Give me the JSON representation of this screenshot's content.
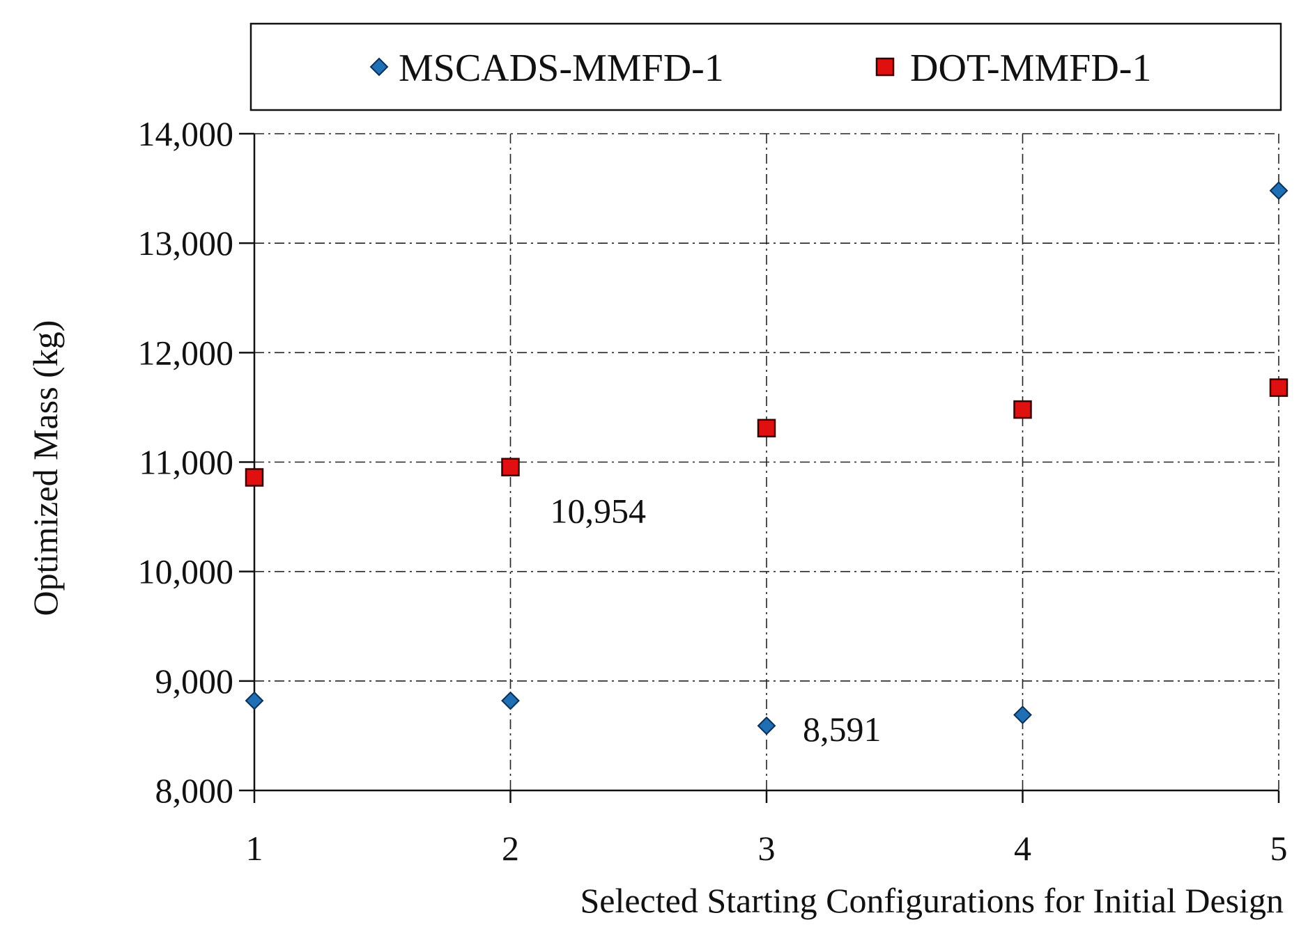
{
  "chart_data": {
    "type": "scatter",
    "title": "",
    "xlabel": "Selected Starting Configurations for Initial Design",
    "ylabel": "Optimized Mass (kg)",
    "xlim": [
      1,
      5
    ],
    "ylim": [
      8000,
      14000
    ],
    "x_ticks": [
      1,
      2,
      3,
      4,
      5
    ],
    "x_tick_labels": [
      "1",
      "2",
      "3",
      "4",
      "5"
    ],
    "y_ticks": [
      8000,
      9000,
      10000,
      11000,
      12000,
      13000,
      14000
    ],
    "y_tick_labels": [
      "8,000",
      "9,000",
      "10,000",
      "11,000",
      "12,000",
      "13,000",
      "14,000"
    ],
    "grid": true,
    "legend_position": "top",
    "series": [
      {
        "name": "MSCADS-MMFD-1",
        "marker": "diamond",
        "color": "#1f6fb5",
        "x": [
          1,
          2,
          3,
          4,
          5
        ],
        "y": [
          8820,
          8820,
          8591,
          8690,
          13480
        ]
      },
      {
        "name": "DOT-MMFD-1",
        "marker": "square",
        "color": "#e01010",
        "x": [
          1,
          2,
          3,
          4,
          5
        ],
        "y": [
          10860,
          10954,
          11310,
          11480,
          11680
        ]
      }
    ],
    "annotations": [
      {
        "text": "10,954",
        "x": 2,
        "y": 10954,
        "series": "DOT-MMFD-1"
      },
      {
        "text": "8,591",
        "x": 3,
        "y": 8591,
        "series": "MSCADS-MMFD-1"
      }
    ]
  }
}
